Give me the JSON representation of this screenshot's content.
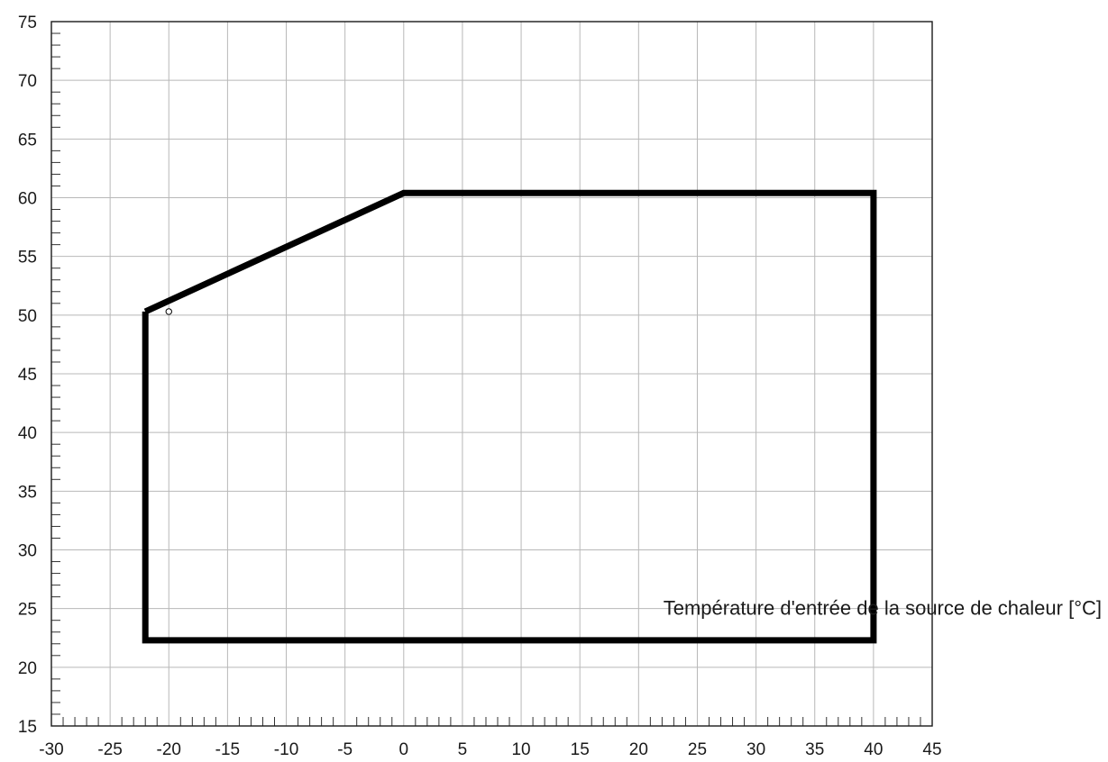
{
  "chart_data": {
    "type": "line",
    "title": "",
    "xlabel": "Température d'entrée de la source de chaleur [°C]",
    "ylabel": "",
    "xlim": [
      -30,
      45
    ],
    "ylim": [
      15,
      75
    ],
    "x_ticks": [
      -30,
      -25,
      -20,
      -15,
      -10,
      -5,
      0,
      5,
      10,
      15,
      20,
      25,
      30,
      35,
      40,
      45
    ],
    "y_ticks": [
      15,
      20,
      25,
      30,
      35,
      40,
      45,
      50,
      55,
      60,
      65,
      70,
      75
    ],
    "x_tick_labels": [
      "-30",
      "-25",
      "-20",
      "-15",
      "-10",
      "-5",
      "0",
      "5",
      "10",
      "15",
      "20",
      "25",
      "30",
      "35",
      "40",
      "45"
    ],
    "y_tick_labels": [
      "15",
      "20",
      "25",
      "30",
      "35",
      "40",
      "45",
      "50",
      "55",
      "60",
      "65",
      "70",
      "75"
    ],
    "grid": true,
    "series": [
      {
        "x": [
          -22,
          0,
          40,
          40,
          -22,
          -22
        ],
        "y": [
          50.3,
          60.4,
          60.4,
          22.3,
          22.3,
          50.3
        ]
      }
    ],
    "markers": [
      {
        "x": -20,
        "y": 50.3
      }
    ],
    "colors": {
      "envelope": "#000000",
      "grid": "#b8b8b8",
      "text": "#1a1a1a"
    }
  }
}
